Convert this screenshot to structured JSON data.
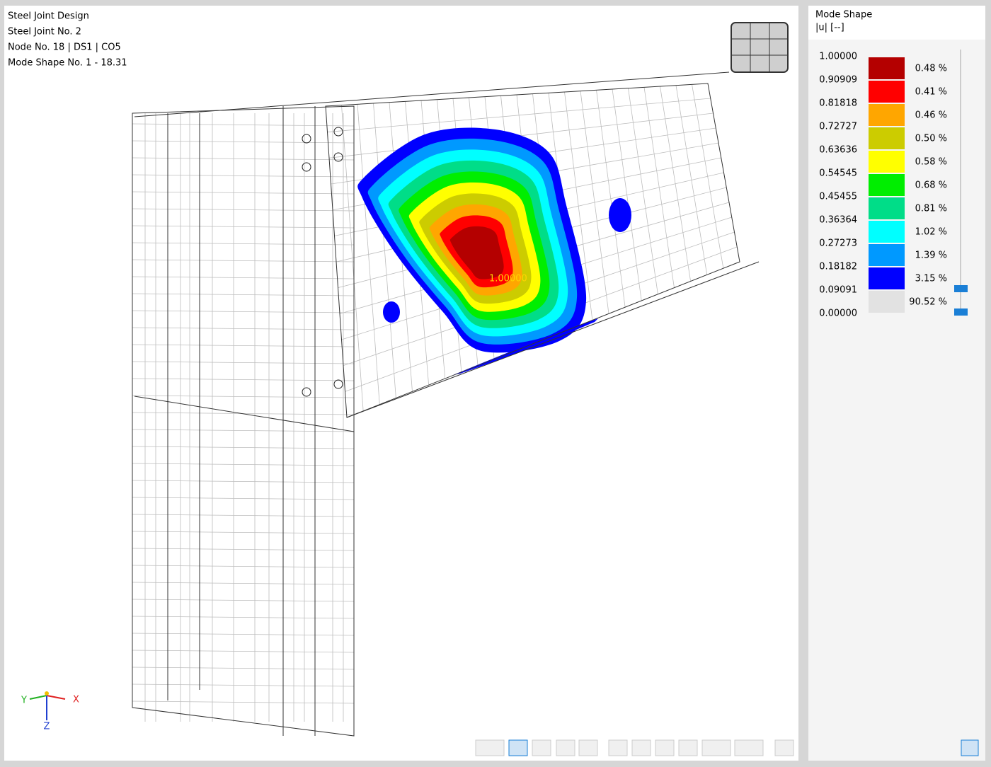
{
  "viewport": {
    "info_lines": [
      "Steel Joint Design",
      "Steel Joint No. 2",
      "Node No. 18 | DS1 | CO5",
      "Mode Shape No. 1 - 18.31"
    ],
    "peak_label": "1.00000",
    "axes": {
      "x": "X",
      "y": "Y",
      "z": "Z"
    }
  },
  "panel": {
    "title": "Mode Shape",
    "unit": "|u| [--]",
    "legend": {
      "values": [
        "1.00000",
        "0.90909",
        "0.81818",
        "0.72727",
        "0.63636",
        "0.54545",
        "0.45455",
        "0.36364",
        "0.27273",
        "0.18182",
        "0.09091",
        "0.00000"
      ],
      "colors": [
        "#b40000",
        "#ff0000",
        "#ffa600",
        "#cccc00",
        "#ffff00",
        "#00ee00",
        "#00dd88",
        "#00ffff",
        "#0099ff",
        "#0000ff",
        "#e2e2e2"
      ],
      "percents": [
        "0.48 %",
        "0.41 %",
        "0.46 %",
        "0.50 %",
        "0.58 %",
        "0.68 %",
        "0.81 %",
        "1.02 %",
        "1.39 %",
        "3.15 %",
        "90.52 %"
      ]
    }
  }
}
